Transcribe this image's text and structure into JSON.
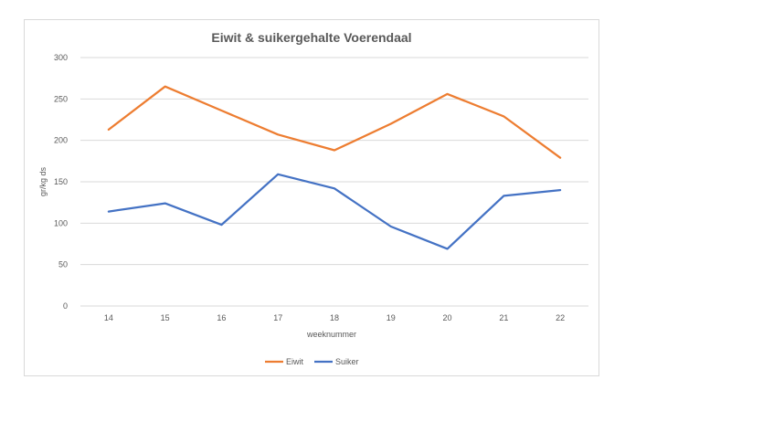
{
  "chart_data": {
    "type": "line",
    "title": "Eiwit & suikergehalte Voerendaal",
    "xlabel": "weeknummer",
    "ylabel": "gr/kg ds",
    "categories": [
      "14",
      "15",
      "16",
      "17",
      "18",
      "19",
      "20",
      "21",
      "22"
    ],
    "ylim": [
      0,
      300
    ],
    "yticks": [
      0,
      50,
      100,
      150,
      200,
      250,
      300
    ],
    "grid": true,
    "legend_position": "bottom",
    "series": [
      {
        "name": "Eiwit",
        "color": "#ed7d31",
        "values": [
          213,
          265,
          236,
          207,
          188,
          220,
          256,
          229,
          179
        ]
      },
      {
        "name": "Suiker",
        "color": "#4472c4",
        "values": [
          114,
          124,
          98,
          159,
          142,
          96,
          69,
          133,
          140
        ]
      }
    ]
  }
}
